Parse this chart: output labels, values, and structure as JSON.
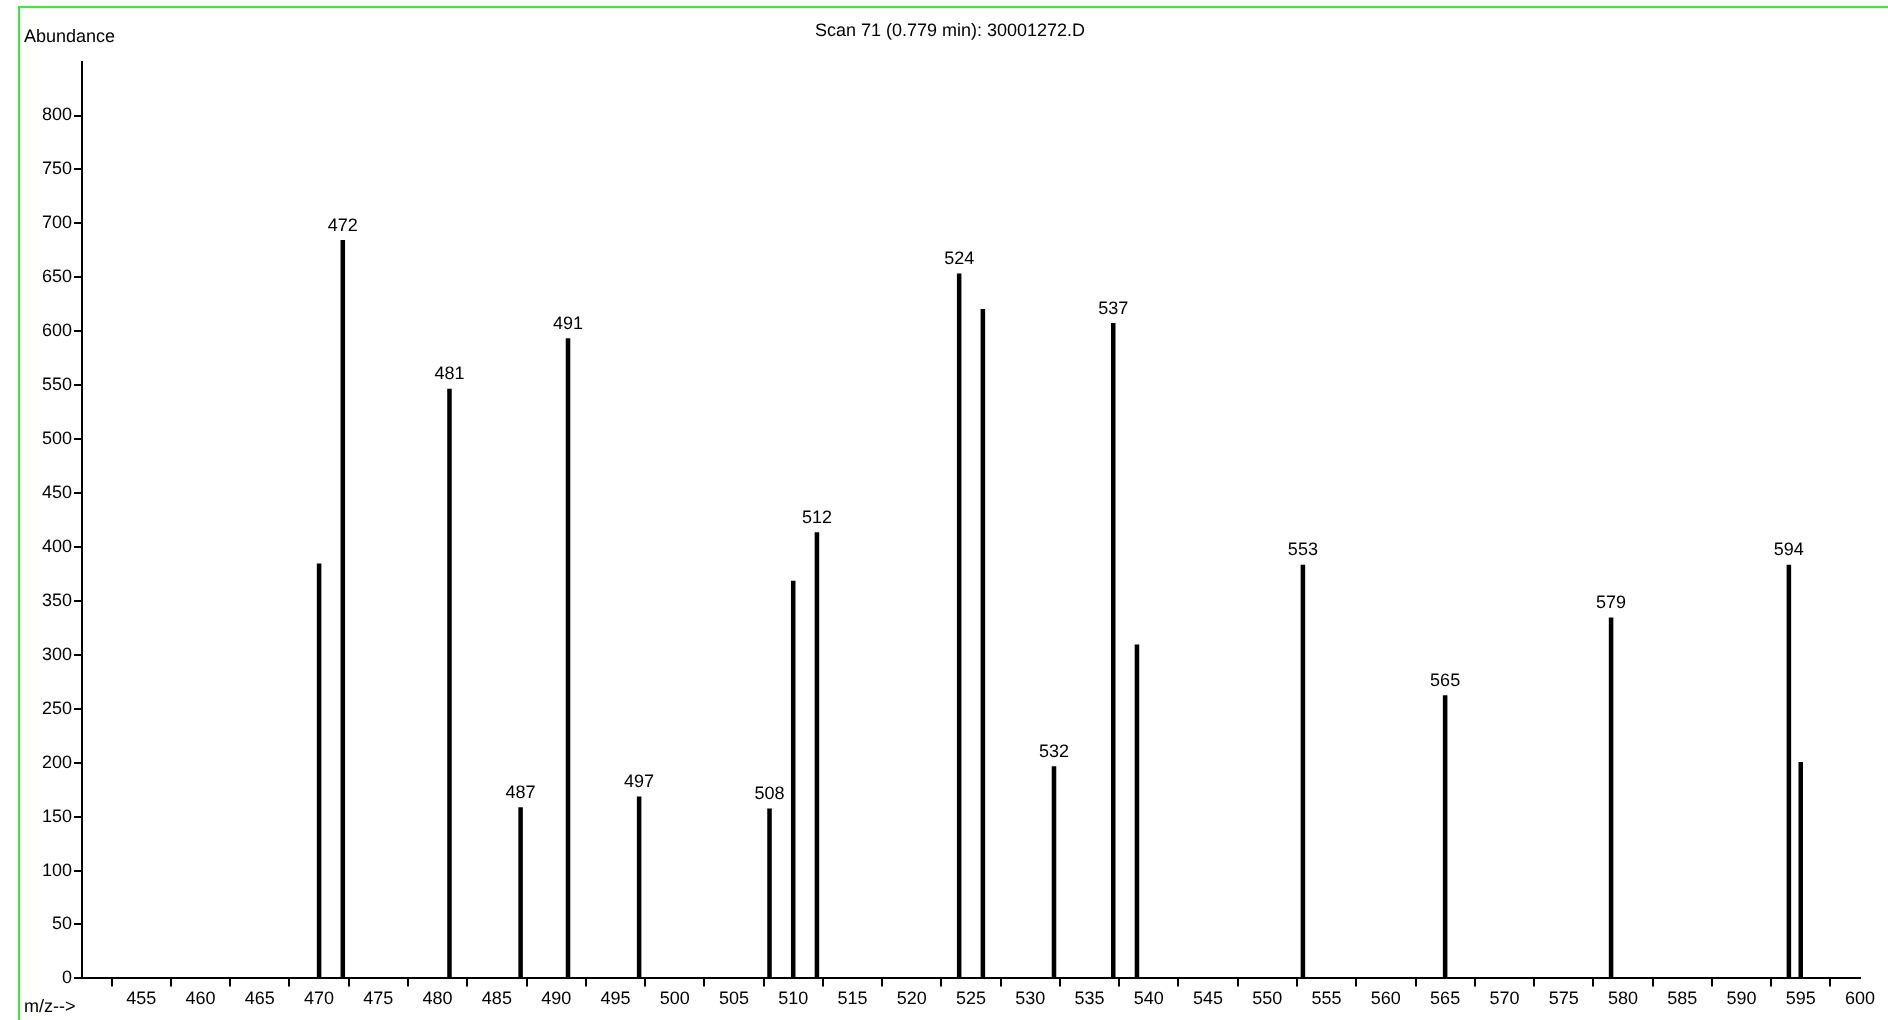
{
  "chart_data": {
    "type": "bar",
    "title": "Scan 71 (0.779 min): 30001272.D",
    "xlabel": "m/z-->",
    "ylabel": "Abundance",
    "x": [
      470,
      472,
      481,
      487,
      491,
      497,
      508,
      510,
      512,
      524,
      526,
      532,
      537,
      539,
      553,
      565,
      579,
      594,
      595
    ],
    "values": [
      384,
      684,
      546,
      158,
      593,
      168,
      157,
      368,
      413,
      653,
      620,
      196,
      607,
      309,
      383,
      262,
      334,
      383,
      200
    ],
    "color": "#000000",
    "xlim": [
      450,
      600
    ],
    "xticks": [
      455,
      460,
      465,
      470,
      475,
      480,
      485,
      490,
      495,
      500,
      505,
      510,
      515,
      520,
      525,
      530,
      535,
      540,
      545,
      550,
      555,
      560,
      565,
      570,
      575,
      580,
      585,
      590,
      595,
      600
    ],
    "ylim": [
      0,
      850
    ],
    "yticks": [
      0,
      50,
      100,
      150,
      200,
      250,
      300,
      350,
      400,
      450,
      500,
      550,
      600,
      650,
      700,
      750,
      800
    ],
    "grid": false,
    "legend": false,
    "annotations": [
      {
        "text": "472",
        "x": 472,
        "y": 684
      },
      {
        "text": "481",
        "x": 481,
        "y": 546
      },
      {
        "text": "487",
        "x": 487,
        "y": 158
      },
      {
        "text": "491",
        "x": 491,
        "y": 593
      },
      {
        "text": "497",
        "x": 497,
        "y": 168
      },
      {
        "text": "508",
        "x": 508,
        "y": 157
      },
      {
        "text": "512",
        "x": 512,
        "y": 413
      },
      {
        "text": "524",
        "x": 524,
        "y": 653
      },
      {
        "text": "532",
        "x": 532,
        "y": 196
      },
      {
        "text": "537",
        "x": 537,
        "y": 607
      },
      {
        "text": "553",
        "x": 553,
        "y": 383
      },
      {
        "text": "565",
        "x": 565,
        "y": 262
      },
      {
        "text": "579",
        "x": 579,
        "y": 334
      },
      {
        "text": "594",
        "x": 594,
        "y": 383
      }
    ]
  }
}
